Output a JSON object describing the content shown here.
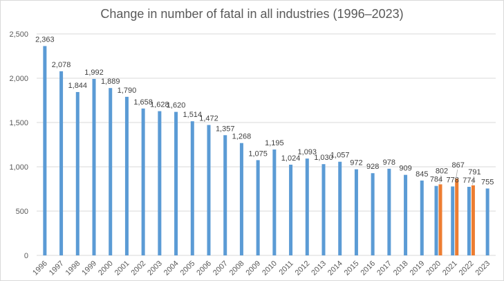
{
  "chart_data": {
    "type": "bar",
    "title": "Change in number of fatal in all industries (1996–2023)",
    "xlabel": "",
    "ylabel": "",
    "ylim": [
      0,
      2500
    ],
    "yticks": [
      "0",
      "500",
      "1,000",
      "1,500",
      "2,000",
      "2,500"
    ],
    "grid": true,
    "legend": "none",
    "colors": {
      "primary": "#5b9bd5",
      "secondary": "#ed7d31"
    },
    "categories": [
      "1996",
      "1997",
      "1998",
      "1999",
      "2000",
      "2001",
      "2002",
      "2003",
      "2004",
      "2005",
      "2006",
      "2007",
      "2008",
      "2009",
      "2010",
      "2011",
      "2012",
      "2013",
      "2014",
      "2015",
      "2016",
      "2017",
      "2018",
      "2019",
      "2020",
      "2021",
      "2022",
      "2023"
    ],
    "series": [
      {
        "values": [
          2363,
          2078,
          1844,
          1992,
          1889,
          1790,
          1658,
          1628,
          1620,
          1514,
          1472,
          1357,
          1268,
          1075,
          1195,
          1024,
          1093,
          1030,
          1057,
          972,
          928,
          978,
          909,
          845,
          784,
          778,
          774,
          755
        ],
        "labels": [
          "2,363",
          "2,078",
          "1,844",
          "1,992",
          "1,889",
          "1,790",
          "1,658",
          "1,628",
          "1,620",
          "1,514",
          "1,472",
          "1,357",
          "1,268",
          "1,075",
          "1,195",
          "1,024",
          "1,093",
          "1,030",
          "1,057",
          "972",
          "928",
          "978",
          "909",
          "845",
          "784",
          "778",
          "774",
          "755"
        ]
      },
      {
        "values": [
          null,
          null,
          null,
          null,
          null,
          null,
          null,
          null,
          null,
          null,
          null,
          null,
          null,
          null,
          null,
          null,
          null,
          null,
          null,
          null,
          null,
          null,
          null,
          null,
          802,
          867,
          791,
          null
        ],
        "labels": [
          "",
          "",
          "",
          "",
          "",
          "",
          "",
          "",
          "",
          "",
          "",
          "",
          "",
          "",
          "",
          "",
          "",
          "",
          "",
          "",
          "",
          "",
          "",
          "",
          "802",
          "867",
          "791",
          ""
        ]
      }
    ]
  }
}
